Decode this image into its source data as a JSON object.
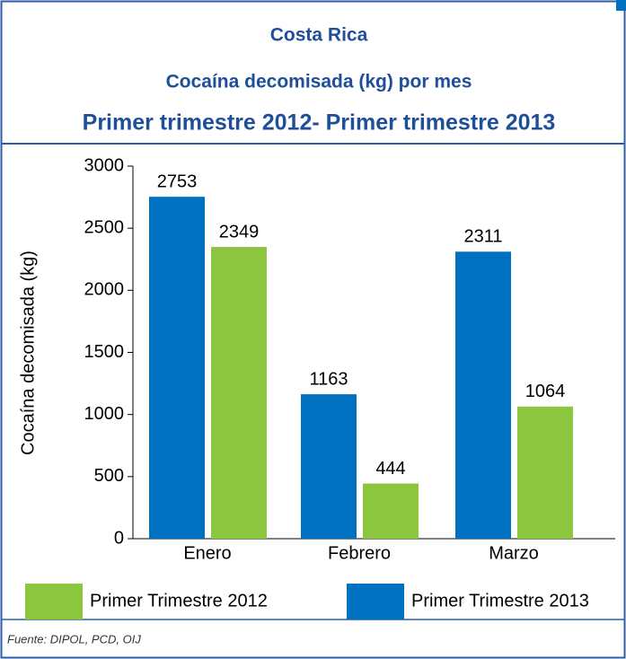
{
  "chart_data": {
    "type": "bar",
    "title": "Costa Rica",
    "subtitle": "Cocaína decomisada (kg) por mes",
    "period": "Primer trimestre 2012- Primer trimestre 2013",
    "ylabel": "Cocaína decomisada (kg)",
    "categories": [
      "Enero",
      "Febrero",
      "Marzo"
    ],
    "series": [
      {
        "name": "Primer Trimestre 2012",
        "color": "#8cc63f",
        "values": [
          2349,
          444,
          1064
        ]
      },
      {
        "name": "Primer Trimestre 2013",
        "color": "#0070c0",
        "values": [
          2753,
          1163,
          2311
        ]
      }
    ],
    "ylim": [
      0,
      3000
    ],
    "yticks": [
      0,
      500,
      1000,
      1500,
      2000,
      2500,
      3000
    ],
    "source": "Fuente: DIPOL, PCD, OIJ"
  }
}
